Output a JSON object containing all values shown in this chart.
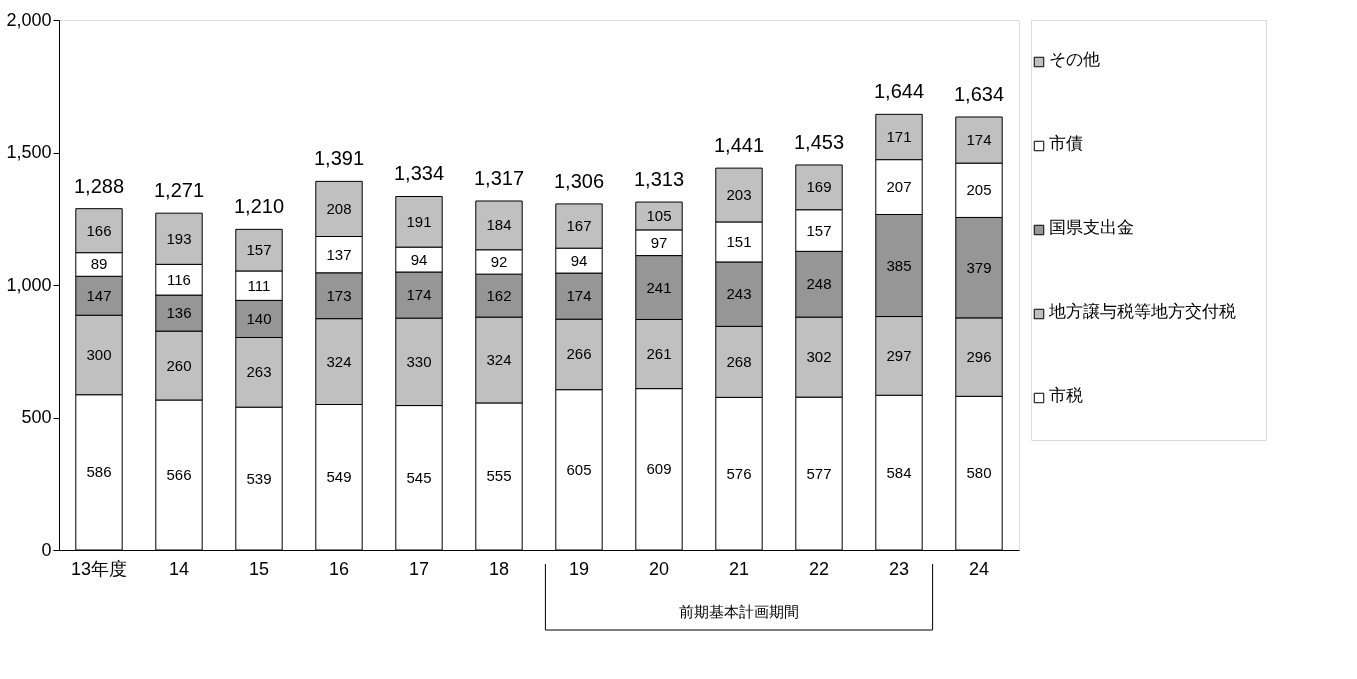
{
  "chart_data": {
    "type": "bar",
    "stacked": true,
    "categories": [
      "13年度",
      "14",
      "15",
      "16",
      "17",
      "18",
      "19",
      "20",
      "21",
      "22",
      "23",
      "24"
    ],
    "series": [
      {
        "name": "市税",
        "color": "#ffffff",
        "values": [
          586,
          566,
          539,
          549,
          545,
          555,
          605,
          609,
          576,
          577,
          584,
          580
        ]
      },
      {
        "name": "地方譲与税等地方交付税",
        "color": "#c0c0c0",
        "values": [
          300,
          260,
          263,
          324,
          330,
          324,
          266,
          261,
          268,
          302,
          297,
          296
        ]
      },
      {
        "name": "国県支出金",
        "color": "#969696",
        "values": [
          147,
          136,
          140,
          173,
          174,
          162,
          174,
          241,
          243,
          248,
          385,
          379
        ]
      },
      {
        "name": "市債",
        "color": "#ffffff",
        "values": [
          89,
          116,
          111,
          137,
          94,
          92,
          94,
          97,
          151,
          157,
          207,
          205
        ]
      },
      {
        "name": "その他",
        "color": "#c0c0c0",
        "values": [
          166,
          193,
          157,
          208,
          191,
          184,
          167,
          105,
          203,
          169,
          171,
          174
        ]
      }
    ],
    "totals": [
      "1,288",
      "1,271",
      "1,210",
      "1,391",
      "1,334",
      "1,317",
      "1,306",
      "1,313",
      "1,441",
      "1,453",
      "1,644",
      "1,634"
    ],
    "data_labels": true,
    "ylim": [
      0,
      2000
    ],
    "yticks": [
      0,
      500,
      {
        "value": 1000,
        "label": "1,000"
      },
      {
        "value": 1500,
        "label": "1,500"
      },
      {
        "value": 2000,
        "label": "2,000"
      }
    ],
    "grid": false,
    "legend": "right",
    "annotations": [
      "前期基本計画期間"
    ]
  }
}
